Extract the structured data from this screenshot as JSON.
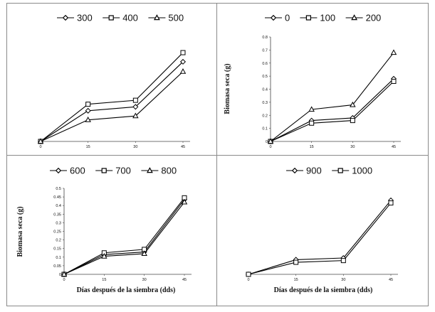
{
  "chart_data": [
    {
      "type": "line",
      "categories": [
        "0",
        "15",
        "30",
        "45"
      ],
      "xlabel": "",
      "ylabel": "",
      "ylim": [
        0,
        0.8
      ],
      "yticks": [],
      "series": [
        {
          "name": "300",
          "marker": "diamond",
          "values": [
            0,
            0.235,
            0.265,
            0.61
          ]
        },
        {
          "name": "400",
          "marker": "square",
          "values": [
            0,
            0.285,
            0.315,
            0.68
          ]
        },
        {
          "name": "500",
          "marker": "triangle",
          "values": [
            0,
            0.165,
            0.195,
            0.535
          ]
        }
      ]
    },
    {
      "type": "line",
      "categories": [
        "0",
        "15",
        "30",
        "45"
      ],
      "xlabel": "",
      "ylabel": "Biomasa seca (g)",
      "ylim": [
        0,
        0.8
      ],
      "yticks": [
        "0",
        "0.1",
        "0.2",
        "0.3",
        "0.4",
        "0.5",
        "0.6",
        "0.7",
        "0.8"
      ],
      "series": [
        {
          "name": "0",
          "marker": "diamond",
          "values": [
            0,
            0.16,
            0.18,
            0.48
          ]
        },
        {
          "name": "100",
          "marker": "square",
          "values": [
            0,
            0.14,
            0.16,
            0.46
          ]
        },
        {
          "name": "200",
          "marker": "triangle",
          "values": [
            0,
            0.245,
            0.28,
            0.68
          ]
        }
      ]
    },
    {
      "type": "line",
      "categories": [
        "0",
        "15",
        "30",
        "45"
      ],
      "xlabel": "Días después de la siembra (dds)",
      "ylabel": "Biomasa seca (g)",
      "ylim": [
        0,
        0.5
      ],
      "yticks": [
        "0",
        "0.05",
        "0.1",
        "0.15",
        "0.2",
        "0.25",
        "0.3",
        "0.35",
        "0.4",
        "0.45",
        "0.5"
      ],
      "series": [
        {
          "name": "600",
          "marker": "diamond",
          "values": [
            0,
            0.115,
            0.13,
            0.435
          ]
        },
        {
          "name": "700",
          "marker": "square",
          "values": [
            0,
            0.125,
            0.145,
            0.445
          ]
        },
        {
          "name": "800",
          "marker": "triangle",
          "values": [
            0,
            0.105,
            0.12,
            0.42
          ]
        }
      ]
    },
    {
      "type": "line",
      "categories": [
        "0",
        "15",
        "30",
        "45"
      ],
      "xlabel": "Días después de la siembra (dds)",
      "ylabel": "",
      "ylim": [
        0,
        0.5
      ],
      "yticks": [],
      "series": [
        {
          "name": "900",
          "marker": "diamond",
          "values": [
            0,
            0.085,
            0.095,
            0.43
          ]
        },
        {
          "name": "1000",
          "marker": "square",
          "values": [
            0,
            0.07,
            0.08,
            0.415
          ]
        }
      ]
    }
  ]
}
